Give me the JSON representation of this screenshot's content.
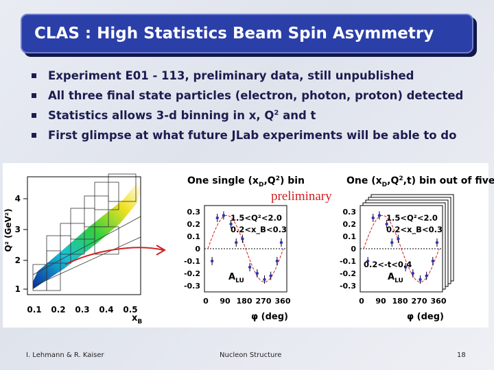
{
  "title": "CLAS : High Statistics Beam Spin Asymmetry",
  "bullets": [
    "Experiment E01 - 113, preliminary data, still unpublished",
    "All three final state particles (electron, photon, proton) detected",
    {
      "text": "Statistics allows 3-d binning in x, Q",
      "sup": "2",
      "tail": " and t"
    },
    "First glimpse at what future JLab experiments will be able to do"
  ],
  "kinematics": {
    "y_label": "Q² (GeV²)",
    "x_label": {
      "main": "x",
      "sub": "B"
    },
    "yticks": [
      "4",
      "3",
      "2",
      "1"
    ],
    "xticks": [
      "0.1",
      "0.2",
      "0.3",
      "0.4",
      "0.5"
    ]
  },
  "preliminary": "preliminary",
  "panels": [
    {
      "title": [
        "One single (x",
        "D",
        ",Q",
        "2",
        ") bin"
      ],
      "yticks": [
        "0.3",
        "0.2",
        "0.1",
        "0",
        "-0.1",
        "-0.2",
        "-0.3"
      ],
      "xticks": [
        "0",
        "90",
        "180",
        "270",
        "360"
      ],
      "x_label": "φ (deg)",
      "a_label": {
        "main": "A",
        "sub": "LU"
      },
      "cuts": [
        "1.5<Q²<2.0",
        "0.2<x_B<0.3"
      ]
    },
    {
      "title": [
        "One (x",
        "D",
        ",Q",
        "2",
        ",t) bin out of five"
      ],
      "yticks": [
        "0.3",
        "0.2",
        "0.1",
        "0",
        "-0.1",
        "-0.2",
        "-0.3"
      ],
      "xticks": [
        "0",
        "90",
        "180",
        "270",
        "360"
      ],
      "x_label": "φ (deg)",
      "a_label": {
        "main": "A",
        "sub": "LU"
      },
      "cuts": [
        "1.5<Q²<2.0",
        "0.2<x_B<0.3",
        "0.2<-t<0.4"
      ]
    }
  ],
  "footer": {
    "authors": "I. Lehmann & R. Kaiser",
    "topic": "Nucleon Structure",
    "page": "18"
  }
}
